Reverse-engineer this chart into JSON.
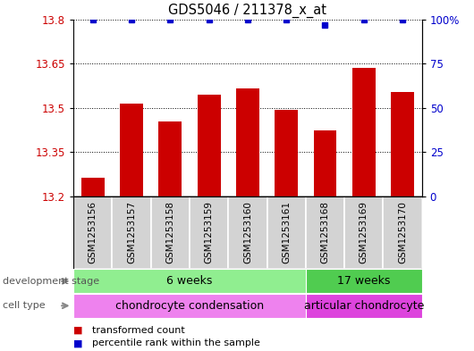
{
  "title": "GDS5046 / 211378_x_at",
  "samples": [
    "GSM1253156",
    "GSM1253157",
    "GSM1253158",
    "GSM1253159",
    "GSM1253160",
    "GSM1253161",
    "GSM1253168",
    "GSM1253169",
    "GSM1253170"
  ],
  "bar_values": [
    13.265,
    13.515,
    13.455,
    13.545,
    13.565,
    13.495,
    13.425,
    13.635,
    13.555
  ],
  "percentile_values": [
    100,
    100,
    100,
    100,
    100,
    100,
    97,
    100,
    100
  ],
  "ylim_left": [
    13.2,
    13.8
  ],
  "ylim_right": [
    0,
    100
  ],
  "yticks_left": [
    13.2,
    13.35,
    13.5,
    13.65,
    13.8
  ],
  "yticks_right": [
    0,
    25,
    50,
    75,
    100
  ],
  "bar_color": "#cc0000",
  "percentile_color": "#0000cc",
  "bar_width": 0.6,
  "num_group1": 6,
  "num_group2": 3,
  "dev_stage_label1": "6 weeks",
  "dev_stage_label2": "17 weeks",
  "cell_type_label1": "chondrocyte condensation",
  "cell_type_label2": "articular chondrocyte",
  "dev_stage_color1": "#90ee90",
  "dev_stage_color2": "#50cc50",
  "cell_type_color1": "#ee82ee",
  "cell_type_color2": "#dd44dd",
  "row_label_dev": "development stage",
  "row_label_cell": "cell type",
  "legend_bar_label": "transformed count",
  "legend_pct_label": "percentile rank within the sample",
  "tick_label_color_left": "#cc0000",
  "tick_label_color_right": "#0000cc",
  "sample_bg_color": "#d3d3d3",
  "arrow_color": "#888888"
}
